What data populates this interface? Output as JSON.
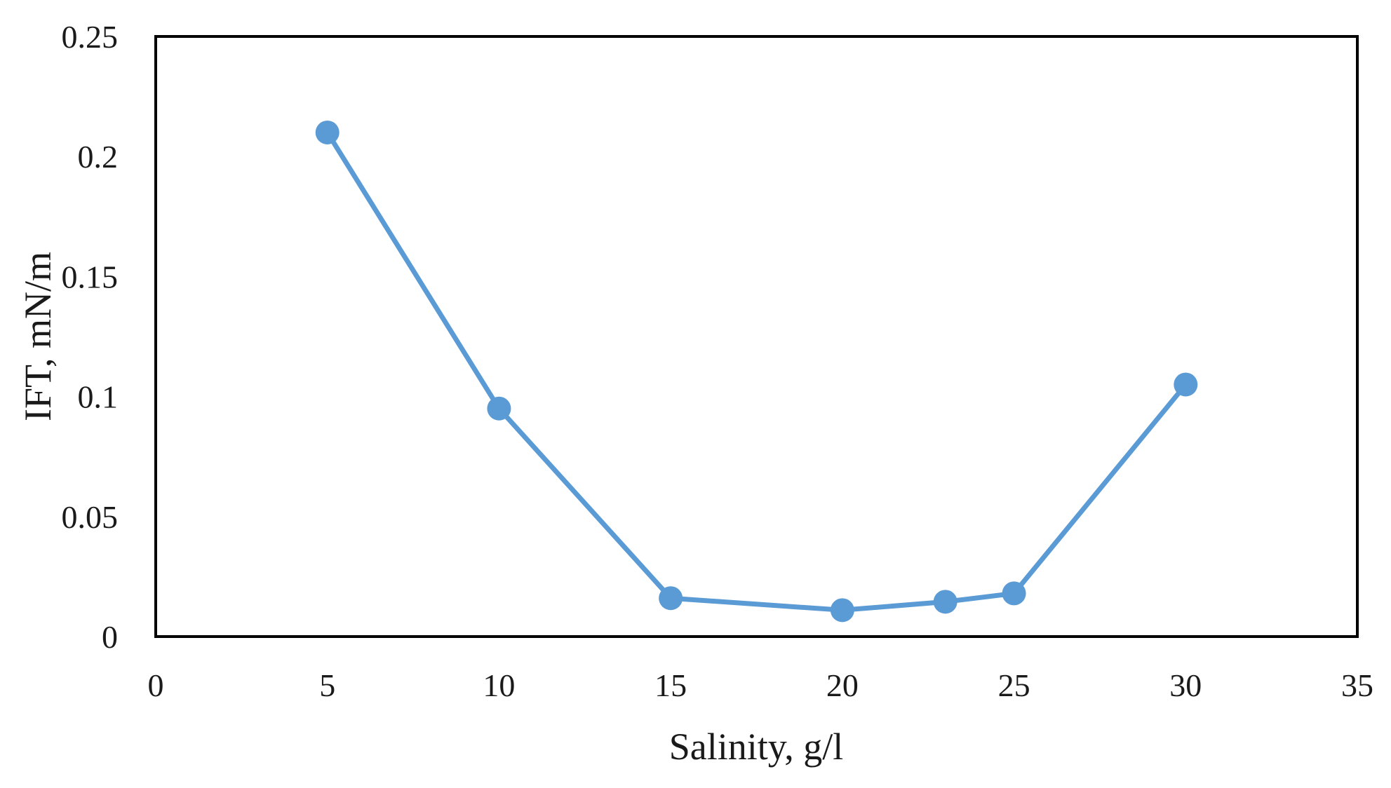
{
  "chart_data": {
    "type": "line",
    "xlabel": "Salinity, g/l",
    "ylabel": "IFT, mN/m",
    "xlim": [
      0,
      35
    ],
    "ylim": [
      0,
      0.25
    ],
    "xticks": [
      "0",
      "5",
      "10",
      "15",
      "20",
      "25",
      "30",
      "35"
    ],
    "yticks": [
      "0",
      "0.05",
      "0.1",
      "0.15",
      "0.2",
      "0.25"
    ],
    "grid": false,
    "legend": "none",
    "series": [
      {
        "color": "#5b9bd5",
        "markers": true,
        "points": [
          {
            "x": 5,
            "y": 0.21
          },
          {
            "x": 10,
            "y": 0.095
          },
          {
            "x": 15,
            "y": 0.016
          },
          {
            "x": 20,
            "y": 0.011
          },
          {
            "x": 23,
            "y": 0.0145
          },
          {
            "x": 25,
            "y": 0.018
          },
          {
            "x": 30,
            "y": 0.105
          }
        ]
      }
    ]
  }
}
